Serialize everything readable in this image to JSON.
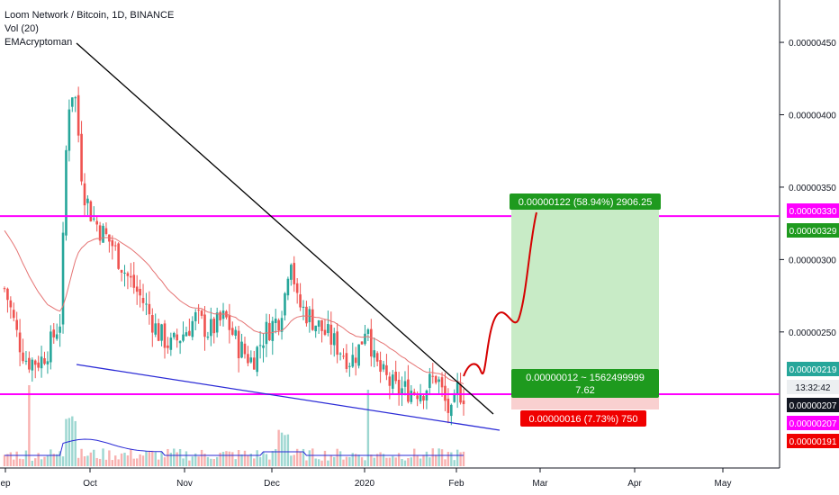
{
  "legend": {
    "title": "Loom Network / Bitcoin, 1D, BINANCE",
    "volume": "Vol (20)",
    "indicator": "EMAcryptoman"
  },
  "colors": {
    "up": "#26a69a",
    "down": "#ef5350",
    "ema": "#e57373",
    "resistance": "#ff00ff",
    "trend_upper": "#000000",
    "trend_lower": "#2b2bd6",
    "projection": "#d50000",
    "profit_zone": "#c8ebc6",
    "loss_zone": "#f9d0d0",
    "profit_label": "#1e9a1e",
    "loss_label": "#f00000"
  },
  "chart_data": {
    "type": "candlestick",
    "x_ticks": [
      "ep",
      "Oct",
      "Nov",
      "Dec",
      "2020",
      "Feb",
      "Mar",
      "Apr",
      "May"
    ],
    "y_ticks": [
      "0.00000250",
      "0.00000300",
      "0.00000350",
      "0.00000400",
      "0.00000450"
    ],
    "ylim": [
      1.83e-06,
      4.79e-06
    ],
    "price_tags": [
      {
        "label": "0.00000330",
        "value": 3.3e-06,
        "color": "#ff00ff"
      },
      {
        "label": "0.00000329",
        "value": 3.22e-06,
        "color": "#1e9a1e"
      },
      {
        "label": "0.00000219",
        "value": 2.19e-06,
        "color": "#26a69a"
      },
      {
        "label": "13:32:42",
        "value": 2.135e-06,
        "color": "#eceff1"
      },
      {
        "label": "0.00000207",
        "value": 2.055e-06,
        "color": "#131722"
      },
      {
        "label": "0.00000207",
        "value": 1.98e-06,
        "color": "#ff00ff"
      },
      {
        "label": "0.00000191",
        "value": 1.91e-06,
        "color": "#f00000"
      }
    ],
    "levels": [
      {
        "name": "resistance",
        "value": 3.3e-06
      },
      {
        "name": "support",
        "value": 2.07e-06
      }
    ],
    "profit_label": "0.00000122 (58.94%) 2906.25",
    "mid_label_line1": "0.00000012 ~ 1562499999",
    "mid_label_line2": "7.62",
    "loss_label": "0.00000016 (7.73%) 750"
  }
}
